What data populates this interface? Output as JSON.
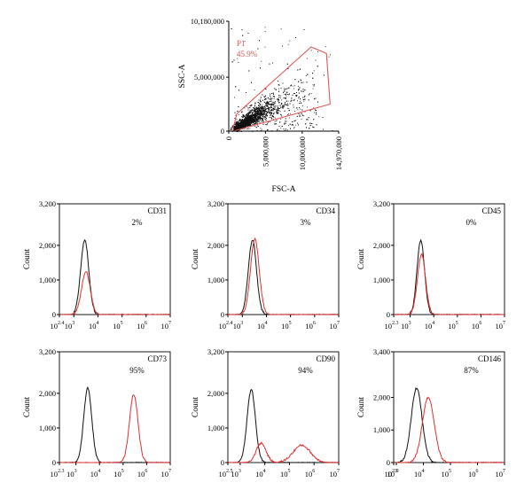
{
  "chart_data": [
    {
      "type": "scatter",
      "xlabel": "FSC-A",
      "ylabel": "SSC-A",
      "xlim": [
        0,
        14970000
      ],
      "ylim": [
        0,
        10180000
      ],
      "x_ticks": [
        "0",
        "5,000,000",
        "10,000,000",
        "14,970,000"
      ],
      "y_ticks": [
        "0",
        "5,000,000",
        "10,180,000"
      ],
      "gate": {
        "name": "P1",
        "percent": "45.9%",
        "color": "#e05a5a",
        "polygon": [
          [
            600000,
            0
          ],
          [
            13800000,
            2500000
          ],
          [
            13300000,
            7200000
          ],
          [
            11200000,
            7800000
          ],
          [
            1100000,
            1600000
          ],
          [
            600000,
            300000
          ]
        ]
      },
      "point_color": "#111111"
    },
    {
      "type": "line",
      "marker": "CD31",
      "percent": "2%",
      "ylabel": "Count",
      "ylim": [
        0,
        3200
      ],
      "y_ticks": [
        "0",
        "1,000",
        "2,000",
        "3,200"
      ],
      "xlim_log10": [
        2.4,
        7
      ],
      "x_ticks": [
        {
          "base": "10",
          "exp": "2.4"
        },
        {
          "base": "10",
          "exp": "3"
        },
        {
          "base": "10",
          "exp": "4"
        },
        {
          "base": "10",
          "exp": "5"
        },
        {
          "base": "10",
          "exp": "6"
        },
        {
          "base": "10",
          "exp": "7"
        }
      ],
      "series": [
        {
          "color": "#111111",
          "peak_log10": 3.45,
          "width": 0.17,
          "peak": 2150
        },
        {
          "color": "#e03030",
          "peak_log10": 3.5,
          "width": 0.18,
          "peak": 1250
        }
      ]
    },
    {
      "type": "line",
      "marker": "CD34",
      "percent": "3%",
      "ylabel": "Count",
      "ylim": [
        0,
        3200
      ],
      "y_ticks": [
        "0",
        "1,000",
        "2,000",
        "3,200"
      ],
      "xlim_log10": [
        2.4,
        7
      ],
      "x_ticks": [
        {
          "base": "10",
          "exp": "2.4"
        },
        {
          "base": "10",
          "exp": "3"
        },
        {
          "base": "10",
          "exp": "4"
        },
        {
          "base": "10",
          "exp": "5"
        },
        {
          "base": "10",
          "exp": "6"
        },
        {
          "base": "10",
          "exp": "7"
        }
      ],
      "series": [
        {
          "color": "#111111",
          "peak_log10": 3.42,
          "width": 0.17,
          "peak": 2150
        },
        {
          "color": "#e03030",
          "peak_log10": 3.52,
          "width": 0.18,
          "peak": 2200
        }
      ]
    },
    {
      "type": "line",
      "marker": "CD45",
      "percent": "0%",
      "ylabel": "Count",
      "ylim": [
        0,
        3200
      ],
      "y_ticks": [
        "0",
        "1,000",
        "2,000",
        "3,200"
      ],
      "xlim_log10": [
        2.3,
        7
      ],
      "x_ticks": [
        {
          "base": "10",
          "exp": "2.3"
        },
        {
          "base": "10",
          "exp": "3"
        },
        {
          "base": "10",
          "exp": "4"
        },
        {
          "base": "10",
          "exp": "5"
        },
        {
          "base": "10",
          "exp": "6"
        },
        {
          "base": "10",
          "exp": "7"
        }
      ],
      "series": [
        {
          "color": "#111111",
          "peak_log10": 3.45,
          "width": 0.16,
          "peak": 2150
        },
        {
          "color": "#e03030",
          "peak_log10": 3.48,
          "width": 0.17,
          "peak": 1750
        }
      ]
    },
    {
      "type": "line",
      "marker": "CD73",
      "percent": "95%",
      "ylabel": "Count",
      "ylim": [
        0,
        3200
      ],
      "y_ticks": [
        "0",
        "1,000",
        "2,000",
        "3,200"
      ],
      "xlim_log10": [
        2.3,
        7
      ],
      "x_ticks": [
        {
          "base": "10",
          "exp": "2.3"
        },
        {
          "base": "10",
          "exp": "3"
        },
        {
          "base": "10",
          "exp": "4"
        },
        {
          "base": "10",
          "exp": "5"
        },
        {
          "base": "10",
          "exp": "6"
        },
        {
          "base": "10",
          "exp": "7"
        }
      ],
      "series": [
        {
          "color": "#111111",
          "peak_log10": 3.5,
          "width": 0.17,
          "peak": 2150
        },
        {
          "color": "#e03030",
          "peak_log10": 5.45,
          "width": 0.18,
          "peak": 1970
        }
      ]
    },
    {
      "type": "line",
      "marker": "CD90",
      "percent": "94%",
      "ylabel": "Count",
      "ylim": [
        0,
        3200
      ],
      "y_ticks": [
        "0",
        "1,000",
        "2,000",
        "3,200"
      ],
      "xlim_log10": [
        2.5,
        7
      ],
      "x_ticks": [
        {
          "base": "10",
          "exp": "2.5"
        },
        {
          "base": "10",
          "exp": "3"
        },
        {
          "base": "10",
          "exp": "4"
        },
        {
          "base": "10",
          "exp": "5"
        },
        {
          "base": "10",
          "exp": "6"
        },
        {
          "base": "10",
          "exp": "7"
        }
      ],
      "series": [
        {
          "color": "#111111",
          "peak_log10": 3.45,
          "width": 0.17,
          "peak": 2100
        },
        {
          "color": "#e03030",
          "bimodal": [
            [
              3.85,
              0.2,
              560
            ],
            [
              5.5,
              0.35,
              500
            ]
          ]
        }
      ]
    },
    {
      "type": "line",
      "marker": "CD146",
      "percent": "87%",
      "ylabel": "Count",
      "ylim": [
        0,
        3400
      ],
      "y_ticks": [
        "0",
        "1,000",
        "2,000",
        "3,400"
      ],
      "xlim_log10": [
        2.9,
        7
      ],
      "x_ticks": [
        {
          "base": "10",
          "exp": "2.9"
        },
        {
          "base": "10",
          "exp": "3"
        },
        {
          "base": "10",
          "exp": "4"
        },
        {
          "base": "10",
          "exp": "5"
        },
        {
          "base": "10",
          "exp": "6"
        },
        {
          "base": "10",
          "exp": "7"
        }
      ],
      "series": [
        {
          "color": "#111111",
          "peak_log10": 3.75,
          "width": 0.2,
          "peak": 2280
        },
        {
          "color": "#e03030",
          "peak_log10": 4.18,
          "width": 0.22,
          "peak": 2000
        }
      ]
    }
  ]
}
